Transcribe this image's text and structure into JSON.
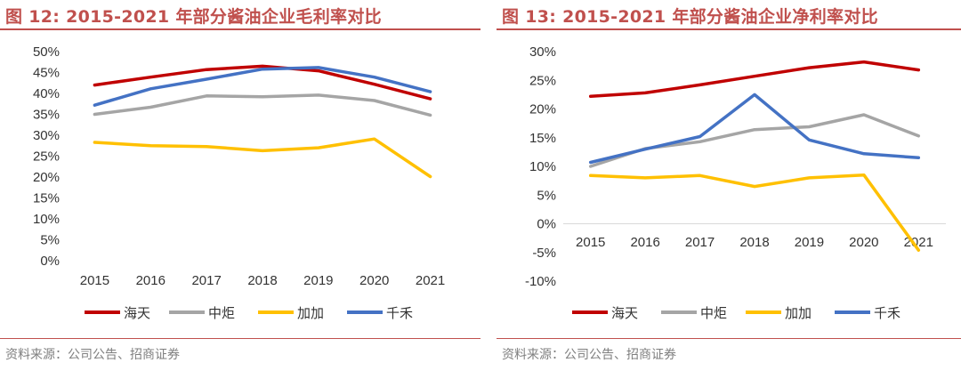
{
  "colors": {
    "accent": "#c0504d",
    "source_text": "#7f7f7f"
  },
  "source_label": "资料来源：公司公告、招商证券",
  "chart_data": [
    {
      "type": "line",
      "title": "图 12:  2015-2021 年部分酱油企业毛利率对比",
      "x": [
        "2015",
        "2016",
        "2017",
        "2018",
        "2019",
        "2020",
        "2021"
      ],
      "ylim": [
        0,
        50
      ],
      "yticks": [
        "0%",
        "5%",
        "10%",
        "15%",
        "20%",
        "25%",
        "30%",
        "35%",
        "40%",
        "45%",
        "50%"
      ],
      "ytick_values": [
        0,
        5,
        10,
        15,
        20,
        25,
        30,
        35,
        40,
        45,
        50
      ],
      "grid": false,
      "legend": "bottom",
      "series": [
        {
          "name": "海天",
          "color": "#c00000",
          "values": [
            42.0,
            43.9,
            45.7,
            46.5,
            45.4,
            42.2,
            38.7
          ]
        },
        {
          "name": "中炬",
          "color": "#a5a5a5",
          "values": [
            35.0,
            36.7,
            39.4,
            39.2,
            39.6,
            38.3,
            34.8
          ]
        },
        {
          "name": "加加",
          "color": "#ffc000",
          "values": [
            28.3,
            27.5,
            27.3,
            26.3,
            27.0,
            29.1,
            20.1
          ]
        },
        {
          "name": "千禾",
          "color": "#4472c4",
          "values": [
            37.2,
            41.1,
            43.4,
            45.8,
            46.2,
            43.9,
            40.4
          ]
        }
      ]
    },
    {
      "type": "line",
      "title": "图 13:  2015-2021 年部分酱油企业净利率对比",
      "x": [
        "2015",
        "2016",
        "2017",
        "2018",
        "2019",
        "2020",
        "2021"
      ],
      "ylim": [
        -10,
        30
      ],
      "yticks": [
        "-10%",
        "-5%",
        "0%",
        "5%",
        "10%",
        "15%",
        "20%",
        "25%",
        "30%"
      ],
      "ytick_values": [
        -10,
        -5,
        0,
        5,
        10,
        15,
        20,
        25,
        30
      ],
      "grid": false,
      "legend": "bottom",
      "series": [
        {
          "name": "海天",
          "color": "#c00000",
          "values": [
            22.2,
            22.8,
            24.2,
            25.7,
            27.2,
            28.2,
            26.8
          ]
        },
        {
          "name": "中炬",
          "color": "#a5a5a5",
          "values": [
            10.0,
            13.1,
            14.3,
            16.4,
            16.9,
            19.0,
            15.3
          ]
        },
        {
          "name": "加加",
          "color": "#ffc000",
          "values": [
            8.4,
            8.0,
            8.4,
            6.5,
            8.0,
            8.5,
            -4.6
          ]
        },
        {
          "name": "千禾",
          "color": "#4472c4",
          "values": [
            10.7,
            13.0,
            15.2,
            22.5,
            14.6,
            12.2,
            11.5
          ]
        }
      ]
    }
  ]
}
